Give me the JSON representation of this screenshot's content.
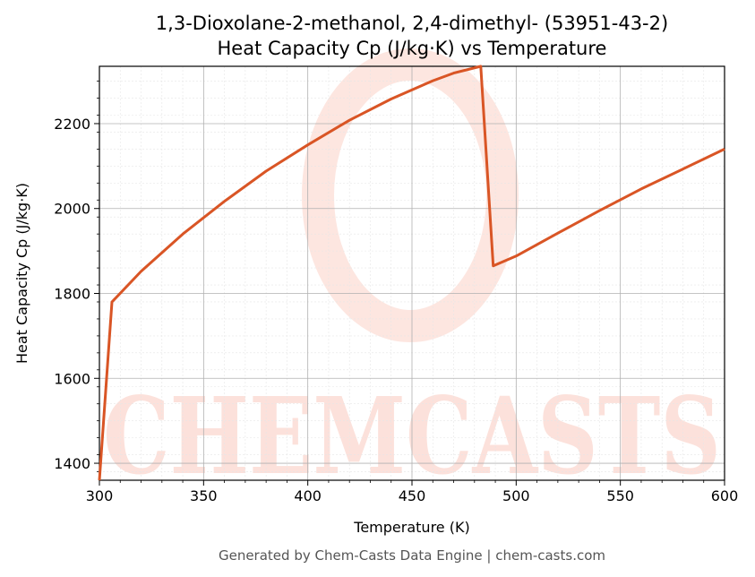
{
  "chart_data": {
    "type": "line",
    "title": "1,3-Dioxolane-2-methanol, 2,4-dimethyl- (53951-43-2)",
    "subtitle": "Heat Capacity Cp (J/kg·K) vs Temperature",
    "xlabel": "Temperature (K)",
    "ylabel": "Heat Capacity Cp (J/kg·K)",
    "xlim": [
      300,
      600
    ],
    "ylim": [
      1360,
      2335
    ],
    "x_ticks": [
      300,
      350,
      400,
      450,
      500,
      550,
      600
    ],
    "y_ticks": [
      1400,
      1600,
      1800,
      2000,
      2200
    ],
    "grid": true,
    "series": [
      {
        "color": "#d95525",
        "x": [
          300,
          306,
          320,
          340,
          360,
          380,
          400,
          420,
          440,
          460,
          470,
          483,
          489,
          500,
          520,
          540,
          560,
          580,
          600
        ],
        "y": [
          1360,
          1780,
          1852,
          1940,
          2017,
          2088,
          2150,
          2208,
          2258,
          2301,
          2319,
          2335,
          1865,
          1888,
          1942,
          1995,
          2046,
          2093,
          2140
        ]
      }
    ]
  },
  "watermark": {
    "text": "CHEMCASTS"
  },
  "footer": "Generated by Chem-Casts Data Engine | chem-casts.com"
}
